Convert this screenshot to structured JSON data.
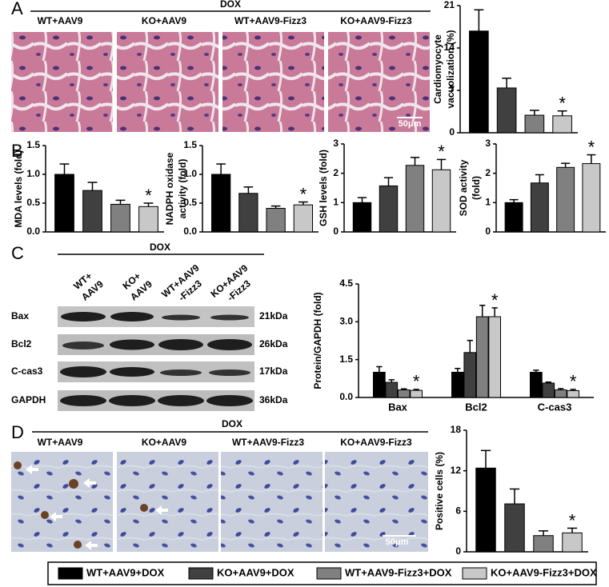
{
  "figure": {
    "panel_labels": [
      "A",
      "B",
      "C",
      "D"
    ],
    "dox": "DOX",
    "image_labels": [
      "WT+AAV9",
      "KO+AAV9",
      "WT+AAV9-Fizz3",
      "KO+AAV9-Fizz3"
    ],
    "scale_bar": "50μm",
    "blot": {
      "lanes": [
        [
          "WT+",
          "AAV9"
        ],
        [
          "KO+",
          "AAV9"
        ],
        [
          "WT+AAV9",
          "-Fizz3"
        ],
        [
          "KO+AAV9",
          "-Fizz3"
        ]
      ],
      "rows": [
        "Bax",
        "Bcl2",
        "C-cas3",
        "GAPDH"
      ],
      "sizes": [
        "21kDa",
        "26kDa",
        "17kDa",
        "36kDa"
      ]
    }
  },
  "legend": {
    "items": [
      {
        "name": "WT+AAV9+DOX",
        "color": "#000000"
      },
      {
        "name": "KO+AAV9+DOX",
        "color": "#404040"
      },
      {
        "name": "WT+AAV9-Fizz3+DOX",
        "color": "#808080"
      },
      {
        "name": "KO+AAV9-Fizz3+DOX",
        "color": "#c8c8c8"
      }
    ]
  },
  "chart_data": [
    {
      "type": "bar",
      "ylabel": [
        "Cardiomyocyte",
        "vacuolization (%)"
      ],
      "values": [
        16.8,
        7.4,
        2.9,
        2.8
      ],
      "errors": [
        3.5,
        1.6,
        0.8,
        0.8
      ],
      "marks": [
        null,
        null,
        null,
        "*"
      ],
      "ylim": [
        0,
        21
      ],
      "yticks": [
        0,
        7,
        14,
        21
      ]
    },
    {
      "type": "bar",
      "ylabel": [
        "MDA levels (fold)"
      ],
      "values": [
        1.0,
        0.72,
        0.48,
        0.44
      ],
      "errors": [
        0.18,
        0.14,
        0.07,
        0.06
      ],
      "marks": [
        null,
        null,
        null,
        "*"
      ],
      "ylim": [
        0,
        1.5
      ],
      "yticks": [
        {
          "value": 0,
          "label": "0.0"
        },
        0.5,
        {
          "value": 1,
          "label": "1.0"
        },
        1.5
      ]
    },
    {
      "type": "bar",
      "ylabel": [
        "NADPH oxidase",
        "activity (fold)"
      ],
      "values": [
        1.0,
        0.67,
        0.41,
        0.47
      ],
      "errors": [
        0.18,
        0.11,
        0.04,
        0.05
      ],
      "marks": [
        null,
        null,
        null,
        "*"
      ],
      "ylim": [
        0,
        1.5
      ],
      "yticks": [
        {
          "value": 0,
          "label": "0.0"
        },
        0.5,
        {
          "value": 1,
          "label": "1.0"
        },
        1.5
      ]
    },
    {
      "type": "bar",
      "ylabel": [
        "GSH levels (fold)"
      ],
      "values": [
        1.0,
        1.57,
        2.27,
        2.12
      ],
      "errors": [
        0.17,
        0.28,
        0.27,
        0.35
      ],
      "marks": [
        null,
        null,
        null,
        "*"
      ],
      "ylim": [
        0,
        3
      ],
      "yticks": [
        0,
        1,
        2,
        3
      ]
    },
    {
      "type": "bar",
      "ylabel": [
        "SOD activity",
        "(fold)"
      ],
      "values": [
        1.0,
        1.67,
        2.2,
        2.33
      ],
      "errors": [
        0.1,
        0.28,
        0.14,
        0.3
      ],
      "marks": [
        null,
        null,
        null,
        "*"
      ],
      "ylim": [
        0,
        3
      ],
      "yticks": [
        0,
        1,
        2,
        3
      ]
    },
    {
      "type": "grouped_bar",
      "ylabel": [
        "Protein/GAPDH (fold)"
      ],
      "categories": [
        "Bax",
        "Bcl2",
        "C-cas3"
      ],
      "series": [
        {
          "values": [
            1.0,
            1.0,
            1.0
          ],
          "errors": [
            0.22,
            0.15,
            0.08
          ],
          "marks": [
            null,
            null,
            null
          ]
        },
        {
          "values": [
            0.6,
            1.78,
            0.57
          ],
          "errors": [
            0.1,
            0.48,
            0.04
          ],
          "marks": [
            null,
            null,
            null
          ]
        },
        {
          "values": [
            0.3,
            3.2,
            0.3
          ],
          "errors": [
            0.04,
            0.45,
            0.05
          ],
          "marks": [
            null,
            null,
            null
          ]
        },
        {
          "values": [
            0.28,
            3.2,
            0.27
          ],
          "errors": [
            0.04,
            0.35,
            0.05
          ],
          "marks": [
            "*",
            "*",
            "*"
          ]
        }
      ],
      "ylim": [
        0,
        4.5
      ],
      "yticks": [
        {
          "value": 0,
          "label": "0.0"
        },
        1.5,
        {
          "value": 3,
          "label": "3.0"
        },
        4.5
      ]
    },
    {
      "type": "bar",
      "ylabel": [
        "Positive cells (%)"
      ],
      "values": [
        12.4,
        7.1,
        2.4,
        2.8
      ],
      "errors": [
        2.6,
        2.2,
        0.7,
        0.7
      ],
      "marks": [
        null,
        null,
        null,
        "*"
      ],
      "ylim": [
        0,
        18
      ],
      "yticks": [
        0,
        6,
        12,
        18
      ]
    }
  ]
}
